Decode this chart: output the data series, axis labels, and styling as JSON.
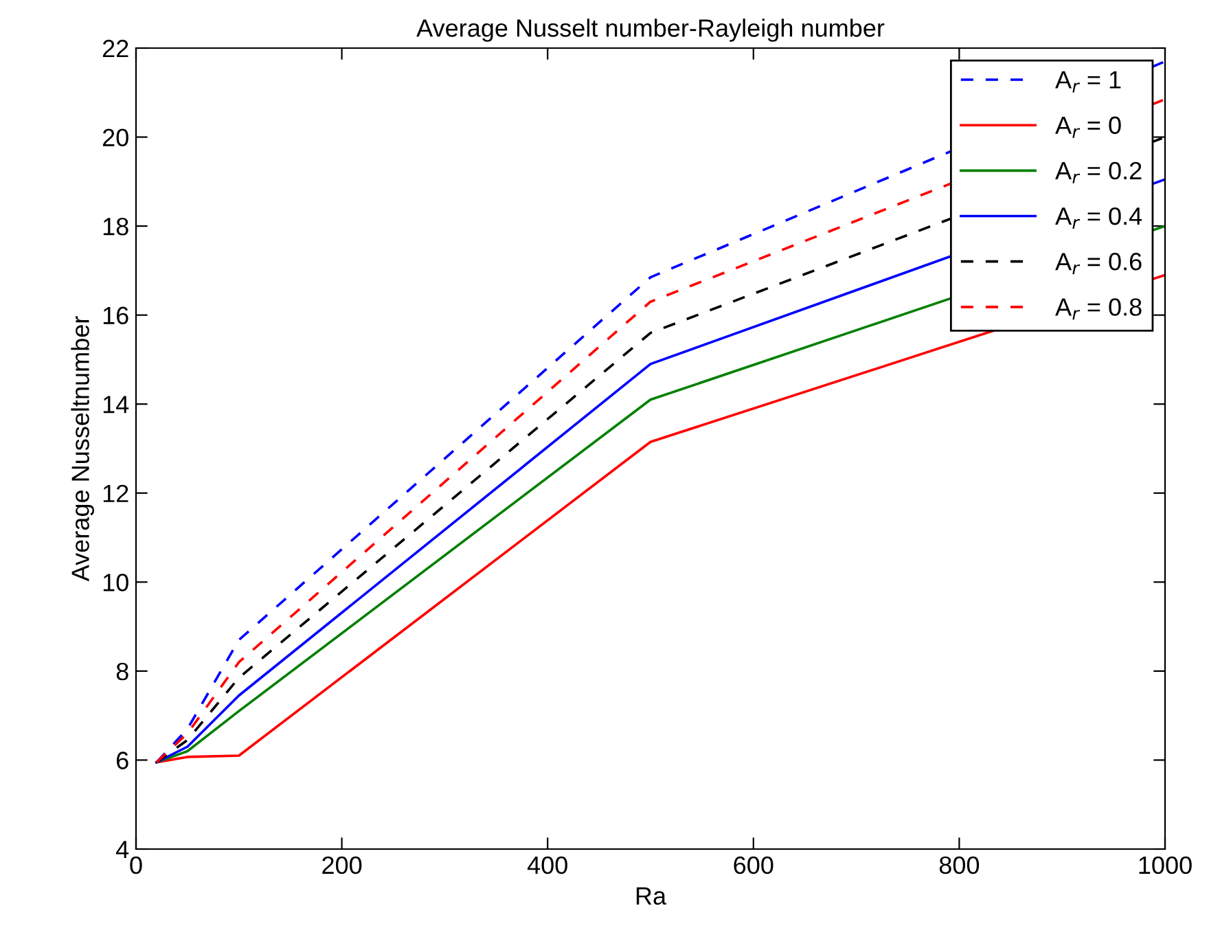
{
  "chart_data": {
    "type": "line",
    "title": "Average Nusselt number-Rayleigh number",
    "xlabel": "Ra",
    "ylabel": "Average Nusseltnumber",
    "x": [
      20,
      50,
      100,
      500,
      1000
    ],
    "series": [
      {
        "name": "A$_{r}$ = 1",
        "color": "#0000ff",
        "line_style": "dashed",
        "values": [
          5.95,
          6.7,
          8.7,
          16.85,
          21.7
        ]
      },
      {
        "name": "A$_{r}$ = 0",
        "color": "#ff0000",
        "line_style": "solid",
        "values": [
          5.95,
          6.07,
          6.1,
          13.15,
          16.9
        ]
      },
      {
        "name": "A$_{r}$ = 0.2",
        "color": "#008000",
        "line_style": "solid",
        "values": [
          5.95,
          6.2,
          7.1,
          14.1,
          18.0
        ]
      },
      {
        "name": "A$_{r}$ = 0.4",
        "color": "#0000ff",
        "line_style": "solid",
        "values": [
          5.95,
          6.3,
          7.45,
          14.9,
          19.05
        ]
      },
      {
        "name": "A$_{r}$ = 0.6",
        "color": "#000000",
        "line_style": "dashed",
        "values": [
          5.95,
          6.45,
          7.85,
          15.6,
          20.0
        ]
      },
      {
        "name": "A$_{r}$ = 0.8",
        "color": "#ff0000",
        "line_style": "dashed",
        "values": [
          5.95,
          6.6,
          8.2,
          16.3,
          20.85
        ]
      }
    ],
    "xlim": [
      0,
      1000
    ],
    "xticks": [
      0,
      200,
      400,
      600,
      800,
      1000
    ],
    "ylim": [
      4,
      22
    ],
    "yticks": [
      4,
      6,
      8,
      10,
      12,
      14,
      16,
      18,
      20,
      22
    ],
    "grid": false,
    "legend": "top right",
    "marker": "none"
  }
}
